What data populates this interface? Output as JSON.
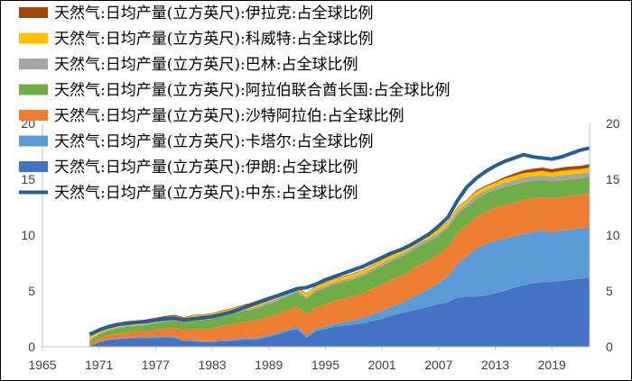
{
  "chart_data": {
    "type": "area",
    "x": [
      1965,
      1966,
      1967,
      1968,
      1969,
      1970,
      1971,
      1972,
      1973,
      1974,
      1975,
      1976,
      1977,
      1978,
      1979,
      1980,
      1981,
      1982,
      1983,
      1984,
      1985,
      1986,
      1987,
      1988,
      1989,
      1990,
      1991,
      1992,
      1993,
      1994,
      1995,
      1996,
      1997,
      1998,
      1999,
      2000,
      2001,
      2002,
      2003,
      2004,
      2005,
      2006,
      2007,
      2008,
      2009,
      2010,
      2011,
      2012,
      2013,
      2014,
      2015,
      2016,
      2017,
      2018,
      2019,
      2020,
      2021,
      2022,
      2023
    ],
    "x_tick_labels": [
      "1965",
      "1971",
      "1977",
      "1983",
      "1989",
      "1995",
      "2001",
      "2007",
      "2013",
      "2019"
    ],
    "left_axis": {
      "ylim": [
        0,
        20
      ],
      "ticks": [
        "0",
        "5",
        "10",
        "15",
        "20"
      ]
    },
    "right_axis": {
      "ylim": [
        0,
        20
      ],
      "ticks": [
        "0",
        "5",
        "10",
        "15",
        "20"
      ]
    },
    "stack_order_bottom_to_top": [
      "伊朗",
      "卡塔尔",
      "沙特阿拉伯",
      "阿拉伯联合酋长国",
      "巴林",
      "科威特",
      "伊拉克"
    ],
    "series": [
      {
        "name": "天然气:日均产量(立方英尺):伊拉克:占全球比例",
        "type": "area",
        "color": "#9E480E",
        "values": [
          null,
          null,
          null,
          null,
          null,
          0.05,
          0.1,
          0.1,
          0.1,
          0.1,
          0.1,
          0.1,
          0.1,
          0.1,
          0.1,
          0.05,
          0.05,
          0.05,
          0.05,
          0.05,
          0.05,
          0.05,
          0.1,
          0.1,
          0.1,
          0.1,
          0.05,
          0.05,
          0.05,
          0.05,
          0.05,
          0.05,
          0.05,
          0.05,
          0.05,
          0.05,
          0.05,
          0.05,
          0.05,
          0.05,
          0.05,
          0.05,
          0.05,
          0.05,
          0.05,
          0.05,
          0.1,
          0.1,
          0.1,
          0.15,
          0.2,
          0.25,
          0.3,
          0.3,
          0.3,
          0.3,
          0.3,
          0.3,
          0.3
        ]
      },
      {
        "name": "天然气:日均产量(立方英尺):科威特:占全球比例",
        "type": "area",
        "color": "#FFC000",
        "values": [
          null,
          null,
          null,
          null,
          null,
          0.3,
          0.3,
          0.3,
          0.3,
          0.3,
          0.3,
          0.3,
          0.3,
          0.3,
          0.3,
          0.3,
          0.3,
          0.3,
          0.3,
          0.3,
          0.3,
          0.3,
          0.4,
          0.4,
          0.4,
          0.3,
          0.1,
          0.2,
          0.3,
          0.3,
          0.3,
          0.3,
          0.3,
          0.3,
          0.3,
          0.3,
          0.3,
          0.3,
          0.3,
          0.3,
          0.3,
          0.3,
          0.3,
          0.3,
          0.3,
          0.3,
          0.35,
          0.35,
          0.35,
          0.35,
          0.4,
          0.4,
          0.4,
          0.4,
          0.4,
          0.4,
          0.4,
          0.4,
          0.4
        ]
      },
      {
        "name": "天然气:日均产量(立方英尺):巴林:占全球比例",
        "type": "area",
        "color": "#A5A5A5",
        "values": [
          null,
          null,
          null,
          null,
          null,
          0.1,
          0.1,
          0.1,
          0.1,
          0.1,
          0.1,
          0.1,
          0.1,
          0.1,
          0.1,
          0.1,
          0.15,
          0.15,
          0.15,
          0.15,
          0.15,
          0.15,
          0.15,
          0.2,
          0.2,
          0.2,
          0.2,
          0.2,
          0.2,
          0.2,
          0.2,
          0.2,
          0.2,
          0.2,
          0.2,
          0.2,
          0.25,
          0.25,
          0.25,
          0.25,
          0.25,
          0.25,
          0.25,
          0.25,
          0.3,
          0.3,
          0.3,
          0.3,
          0.3,
          0.4,
          0.4,
          0.4,
          0.4,
          0.4,
          0.4,
          0.45,
          0.45,
          0.45,
          0.45
        ]
      },
      {
        "name": "天然气:日均产量(立方英尺):阿拉伯联合酋长国:占全球比例",
        "type": "area",
        "color": "#70AD47",
        "values": [
          null,
          null,
          null,
          null,
          null,
          0.2,
          0.3,
          0.4,
          0.45,
          0.5,
          0.5,
          0.55,
          0.6,
          0.6,
          0.65,
          0.7,
          0.75,
          0.8,
          0.85,
          0.9,
          0.95,
          1.0,
          1.0,
          1.05,
          1.1,
          1.2,
          1.25,
          1.3,
          1.35,
          1.4,
          1.45,
          1.5,
          1.5,
          1.5,
          1.55,
          1.6,
          1.65,
          1.65,
          1.7,
          1.7,
          1.7,
          1.7,
          1.65,
          1.7,
          1.7,
          1.65,
          1.6,
          1.6,
          1.6,
          1.6,
          1.6,
          1.6,
          1.55,
          1.55,
          1.5,
          1.5,
          1.5,
          1.45,
          1.45
        ]
      },
      {
        "name": "天然气:日均产量(立方英尺):沙特阿拉伯:占全球比例",
        "type": "area",
        "color": "#ED7D31",
        "values": [
          null,
          null,
          null,
          null,
          null,
          0.2,
          0.35,
          0.4,
          0.45,
          0.5,
          0.5,
          0.55,
          0.6,
          0.7,
          0.8,
          0.9,
          1.0,
          1.1,
          1.15,
          1.25,
          1.35,
          1.45,
          1.5,
          1.6,
          1.65,
          1.7,
          1.75,
          1.8,
          1.9,
          1.95,
          2.0,
          2.05,
          2.1,
          2.15,
          2.2,
          2.3,
          2.4,
          2.4,
          2.45,
          2.5,
          2.55,
          2.55,
          2.6,
          2.65,
          2.75,
          2.8,
          2.85,
          2.9,
          2.95,
          3.0,
          3.0,
          3.05,
          3.0,
          3.0,
          3.0,
          3.0,
          3.0,
          3.0,
          3.05
        ]
      },
      {
        "name": "天然气:日均产量(立方英尺):卡塔尔:占全球比例",
        "type": "area",
        "color": "#5B9BD5",
        "values": [
          null,
          null,
          null,
          null,
          null,
          0.05,
          0.05,
          0.05,
          0.05,
          0.05,
          0.05,
          0.05,
          0.1,
          0.1,
          0.1,
          0.1,
          0.1,
          0.1,
          0.1,
          0.1,
          0.15,
          0.15,
          0.15,
          0.15,
          0.15,
          0.15,
          0.15,
          0.2,
          0.2,
          0.2,
          0.2,
          0.25,
          0.3,
          0.4,
          0.5,
          0.6,
          0.7,
          0.8,
          0.9,
          1.1,
          1.4,
          1.6,
          1.9,
          2.3,
          3.0,
          3.6,
          4.3,
          4.6,
          4.7,
          4.7,
          4.6,
          4.6,
          4.6,
          4.6,
          4.5,
          4.5,
          4.5,
          4.5,
          4.5
        ]
      },
      {
        "name": "天然气:日均产量(立方英尺):伊朗:占全球比例",
        "type": "area",
        "color": "#4472C4",
        "values": [
          null,
          null,
          null,
          null,
          null,
          0.05,
          0.4,
          0.6,
          0.7,
          0.75,
          0.8,
          0.8,
          0.8,
          0.85,
          0.8,
          0.5,
          0.5,
          0.4,
          0.4,
          0.5,
          0.5,
          0.6,
          0.6,
          0.7,
          0.9,
          1.1,
          1.4,
          1.6,
          0.8,
          1.4,
          1.6,
          1.8,
          1.9,
          2.0,
          2.1,
          2.3,
          2.5,
          2.8,
          3.0,
          3.2,
          3.4,
          3.6,
          3.8,
          4.0,
          4.4,
          4.5,
          4.5,
          4.6,
          4.8,
          5.0,
          5.3,
          5.5,
          5.7,
          5.8,
          5.8,
          5.9,
          6.0,
          6.1,
          6.2
        ]
      },
      {
        "name": "天然气:日均产量(立方英尺):中东:占全球比例",
        "type": "line",
        "color": "#255E91",
        "values": [
          null,
          null,
          null,
          null,
          null,
          1.1,
          1.5,
          1.8,
          2.0,
          2.1,
          2.2,
          2.25,
          2.4,
          2.5,
          2.55,
          2.4,
          2.5,
          2.6,
          2.7,
          2.9,
          3.1,
          3.4,
          3.7,
          4.0,
          4.3,
          4.6,
          4.9,
          5.2,
          5.3,
          5.6,
          6.0,
          6.3,
          6.6,
          6.9,
          7.2,
          7.6,
          8.0,
          8.4,
          8.7,
          9.1,
          9.6,
          10.1,
          10.8,
          11.6,
          13.1,
          14.3,
          15.1,
          15.7,
          16.2,
          16.6,
          16.9,
          17.2,
          17.0,
          16.9,
          16.8,
          17.0,
          17.3,
          17.6,
          17.8
        ]
      }
    ]
  }
}
